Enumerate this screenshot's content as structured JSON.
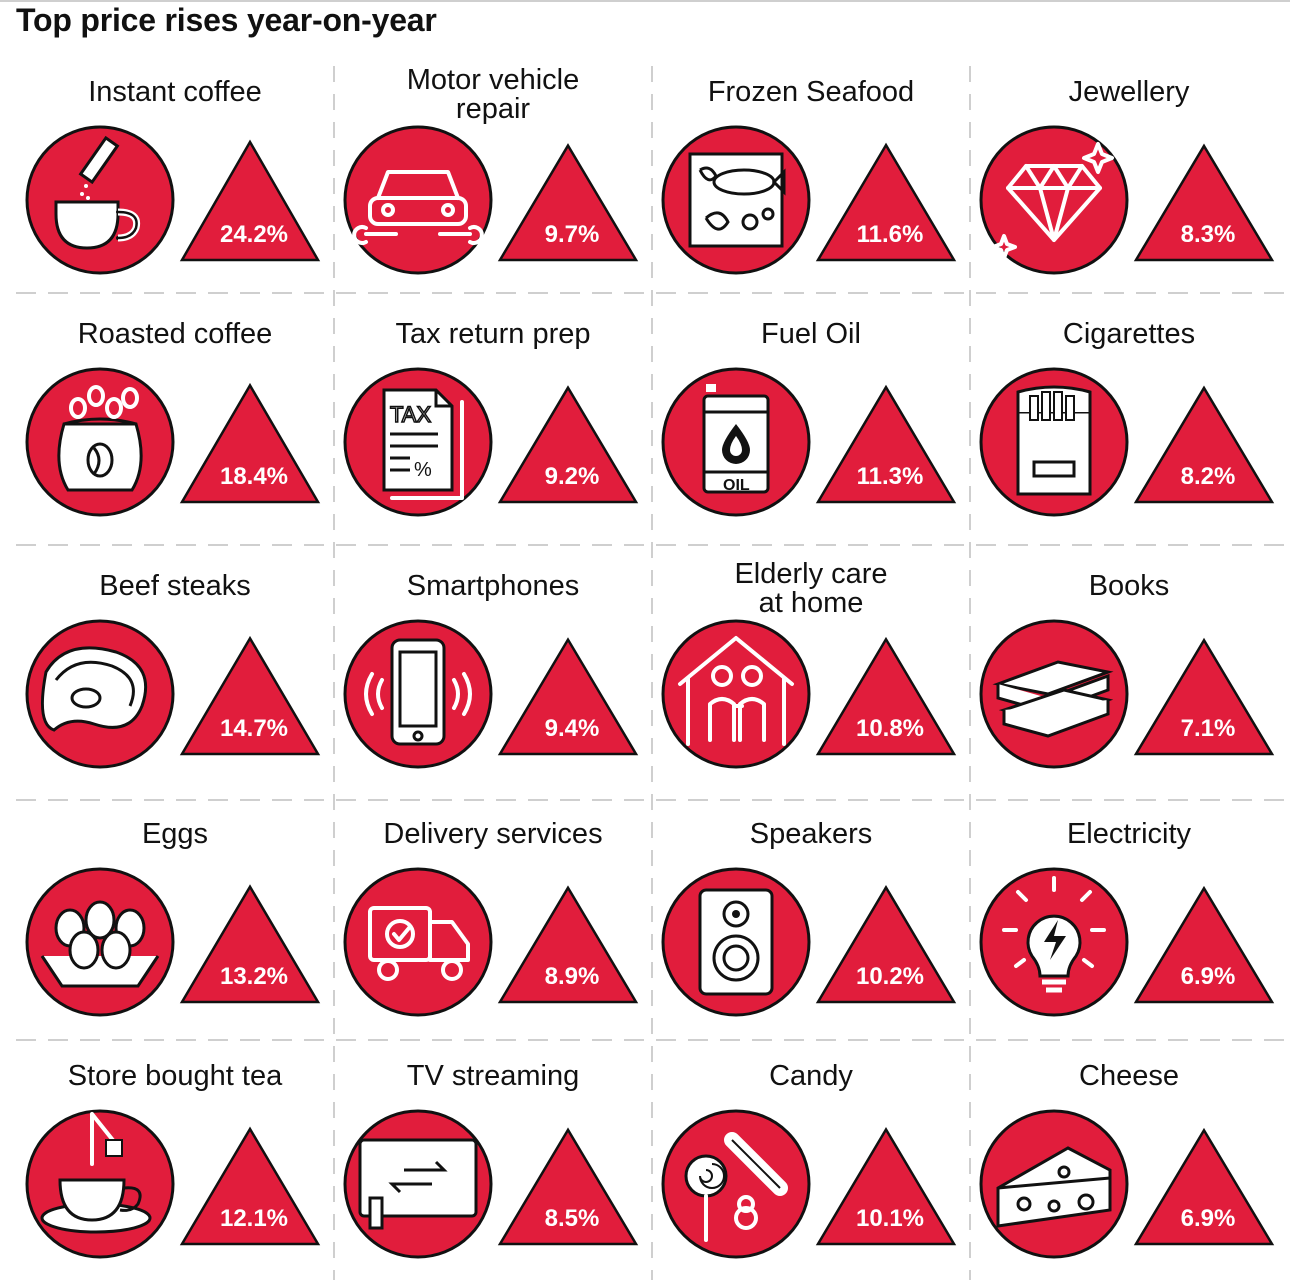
{
  "title": "Top price rises year-on-year",
  "colors": {
    "accent": "#e11d3c",
    "stroke": "#111111",
    "divider": "#bfbfbf"
  },
  "chart_data": {
    "type": "icon-triangle-grid",
    "title": "Top price rises year-on-year",
    "unit": "%",
    "items": [
      {
        "label": "Instant coffee",
        "value": 24.2,
        "value_label": "24.2%",
        "icon": "instant-coffee-icon"
      },
      {
        "label": "Motor vehicle repair",
        "label_lines": [
          "Motor vehicle",
          "repair"
        ],
        "value": 9.7,
        "value_label": "9.7%",
        "icon": "car-repair-icon"
      },
      {
        "label": "Frozen Seafood",
        "value": 11.6,
        "value_label": "11.6%",
        "icon": "frozen-seafood-icon"
      },
      {
        "label": "Jewellery",
        "value": 8.3,
        "value_label": "8.3%",
        "icon": "diamond-icon"
      },
      {
        "label": "Roasted coffee",
        "value": 18.4,
        "value_label": "18.4%",
        "icon": "coffee-bag-icon"
      },
      {
        "label": "Tax return prep",
        "value": 9.2,
        "value_label": "9.2%",
        "icon": "tax-document-icon",
        "icon_text": "TAX"
      },
      {
        "label": "Fuel Oil",
        "value": 11.3,
        "value_label": "11.3%",
        "icon": "oil-barrel-icon",
        "icon_text": "OIL"
      },
      {
        "label": "Cigarettes",
        "value": 8.2,
        "value_label": "8.2%",
        "icon": "cigarette-pack-icon"
      },
      {
        "label": "Beef steaks",
        "value": 14.7,
        "value_label": "14.7%",
        "icon": "steak-icon"
      },
      {
        "label": "Smartphones",
        "value": 9.4,
        "value_label": "9.4%",
        "icon": "smartphone-icon"
      },
      {
        "label": "Elderly care at home",
        "label_lines": [
          "Elderly care",
          "at home"
        ],
        "value": 10.8,
        "value_label": "10.8%",
        "icon": "elderly-care-icon"
      },
      {
        "label": "Books",
        "value": 7.1,
        "value_label": "7.1%",
        "icon": "books-icon"
      },
      {
        "label": "Eggs",
        "value": 13.2,
        "value_label": "13.2%",
        "icon": "egg-carton-icon"
      },
      {
        "label": "Delivery services",
        "value": 8.9,
        "value_label": "8.9%",
        "icon": "delivery-truck-icon"
      },
      {
        "label": "Speakers",
        "value": 10.2,
        "value_label": "10.2%",
        "icon": "speaker-icon"
      },
      {
        "label": "Electricity",
        "value": 6.9,
        "value_label": "6.9%",
        "icon": "lightbulb-icon"
      },
      {
        "label": "Store bought tea",
        "value": 12.1,
        "value_label": "12.1%",
        "icon": "tea-cup-icon"
      },
      {
        "label": "TV streaming",
        "value": 8.5,
        "value_label": "8.5%",
        "icon": "tv-streaming-icon"
      },
      {
        "label": "Candy",
        "value": 10.1,
        "value_label": "10.1%",
        "icon": "candy-icon"
      },
      {
        "label": "Cheese",
        "value": 6.9,
        "value_label": "6.9%",
        "icon": "cheese-icon"
      }
    ]
  }
}
